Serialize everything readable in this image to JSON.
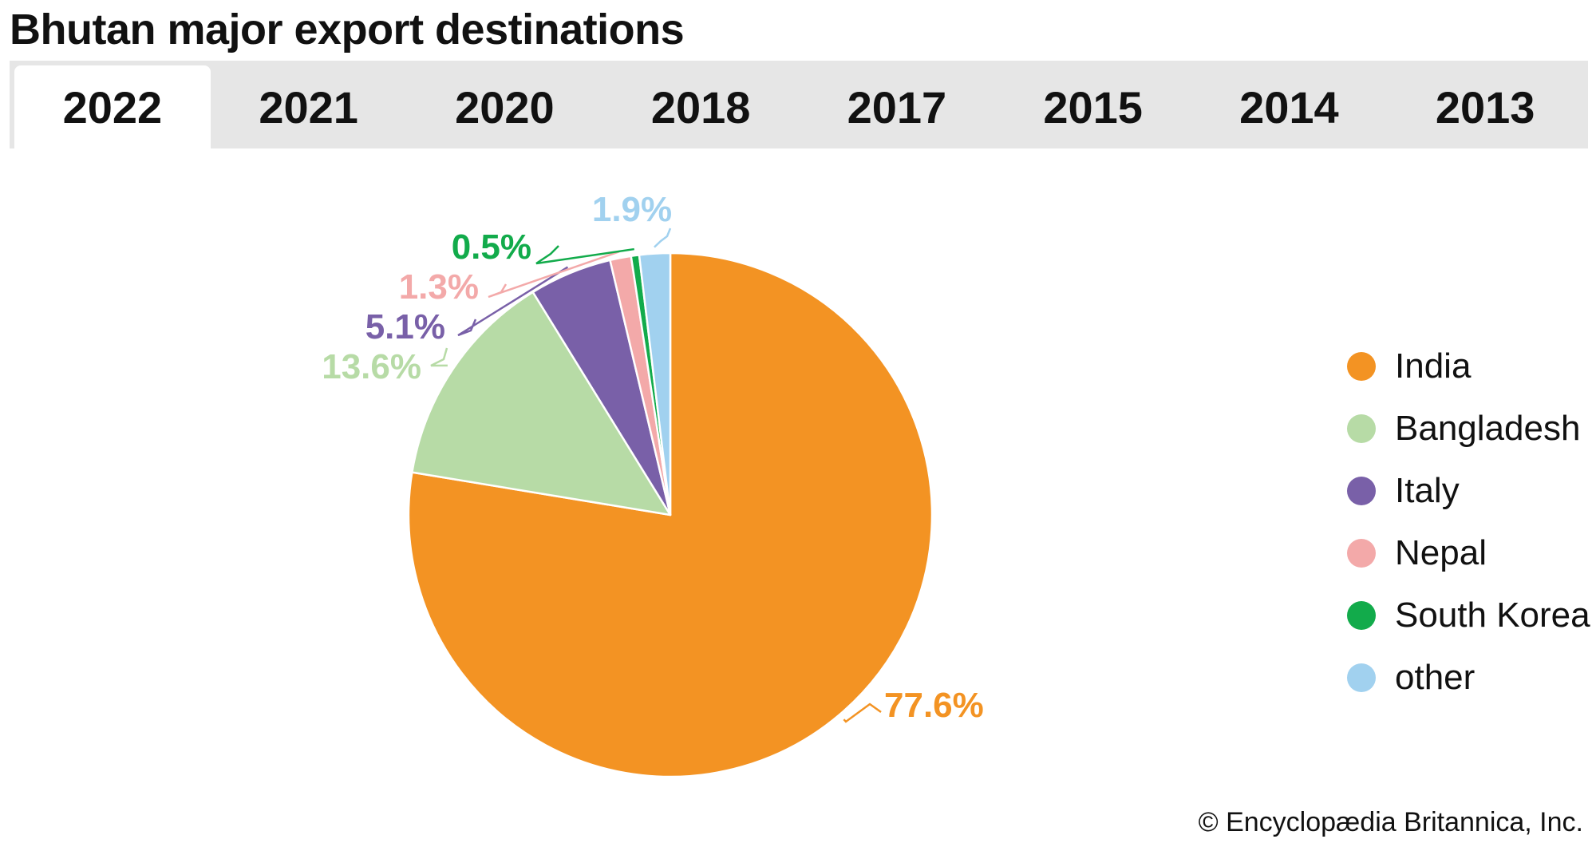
{
  "title": "Bhutan major export destinations",
  "tabs": [
    {
      "label": "2022",
      "active": true
    },
    {
      "label": "2021",
      "active": false
    },
    {
      "label": "2020",
      "active": false
    },
    {
      "label": "2018",
      "active": false
    },
    {
      "label": "2017",
      "active": false
    },
    {
      "label": "2015",
      "active": false
    },
    {
      "label": "2014",
      "active": false
    },
    {
      "label": "2013",
      "active": false
    }
  ],
  "chart_data": {
    "type": "pie",
    "title": "Bhutan major export destinations",
    "categories": [
      "India",
      "Bangladesh",
      "Italy",
      "Nepal",
      "South Korea",
      "other"
    ],
    "values": [
      77.6,
      13.6,
      5.1,
      1.3,
      0.5,
      1.9
    ],
    "value_labels": [
      "77.6%",
      "13.6%",
      "5.1%",
      "1.3%",
      "0.5%",
      "1.9%"
    ],
    "colors": [
      "#f39323",
      "#b7dba6",
      "#7960a8",
      "#f3a9a9",
      "#12ab4b",
      "#a1d1ef"
    ],
    "start_angle": "12 o'clock",
    "direction": "clockwise",
    "legend_position": "right"
  },
  "credit": "© Encyclopædia Britannica, Inc."
}
